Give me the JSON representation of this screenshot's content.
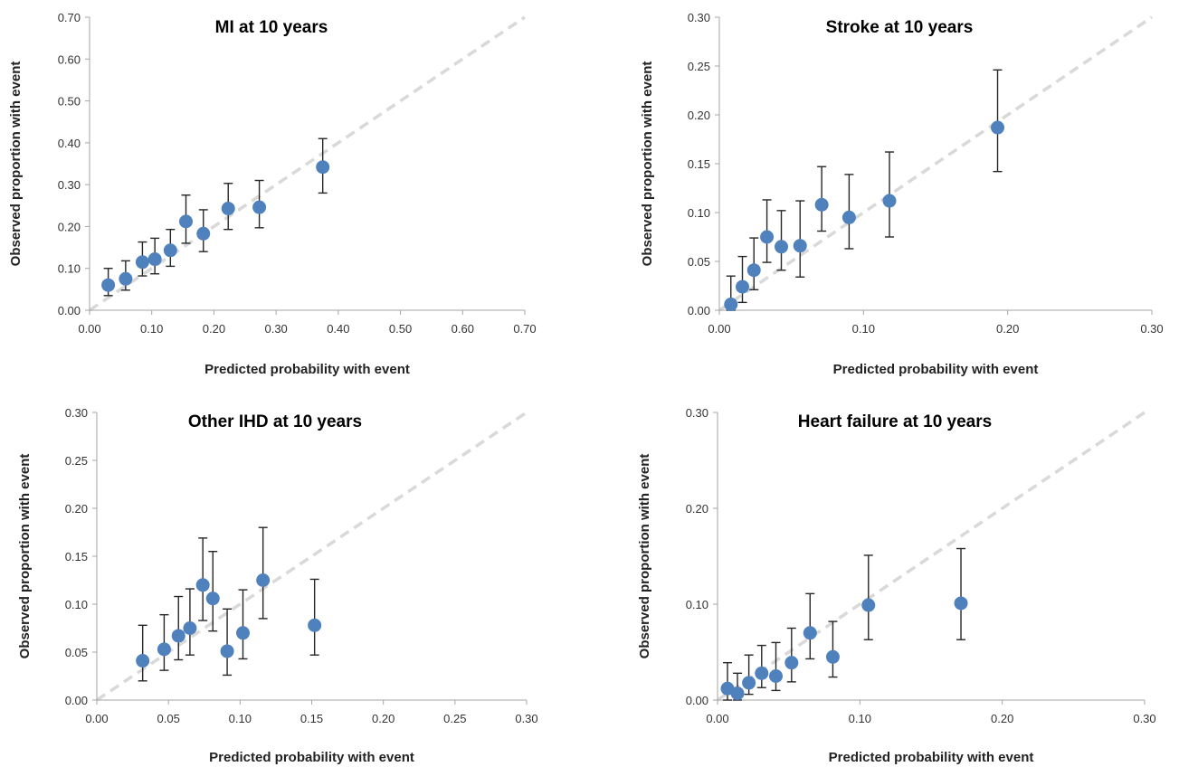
{
  "chart_data": [
    {
      "type": "scatter",
      "title": "MI at 10 years",
      "xlabel": "Predicted probability with event",
      "ylabel": "Observed proportion with event",
      "xlim": [
        0,
        0.7
      ],
      "ylim": [
        0,
        0.7
      ],
      "xticks": [
        "0.00",
        "0.10",
        "0.20",
        "0.30",
        "0.40",
        "0.50",
        "0.60",
        "0.70"
      ],
      "yticks": [
        "0.00",
        "0.10",
        "0.20",
        "0.30",
        "0.40",
        "0.50",
        "0.60",
        "0.70"
      ],
      "reference_line": "y = x (dashed)",
      "grid": false,
      "points": [
        {
          "x": 0.03,
          "y": 0.06,
          "lo": 0.035,
          "hi": 0.1
        },
        {
          "x": 0.058,
          "y": 0.075,
          "lo": 0.048,
          "hi": 0.118
        },
        {
          "x": 0.085,
          "y": 0.115,
          "lo": 0.082,
          "hi": 0.163
        },
        {
          "x": 0.105,
          "y": 0.122,
          "lo": 0.087,
          "hi": 0.172
        },
        {
          "x": 0.13,
          "y": 0.143,
          "lo": 0.105,
          "hi": 0.193
        },
        {
          "x": 0.155,
          "y": 0.212,
          "lo": 0.16,
          "hi": 0.275
        },
        {
          "x": 0.183,
          "y": 0.183,
          "lo": 0.14,
          "hi": 0.24
        },
        {
          "x": 0.223,
          "y": 0.243,
          "lo": 0.193,
          "hi": 0.303
        },
        {
          "x": 0.273,
          "y": 0.246,
          "lo": 0.197,
          "hi": 0.31
        },
        {
          "x": 0.375,
          "y": 0.342,
          "lo": 0.28,
          "hi": 0.41
        }
      ]
    },
    {
      "type": "scatter",
      "title": "Stroke at 10 years",
      "xlabel": "Predicted probability with event",
      "ylabel": "Observed proportion with event",
      "xlim": [
        0,
        0.3
      ],
      "ylim": [
        0,
        0.3
      ],
      "xticks": [
        "0.00",
        "0.10",
        "0.20",
        "0.30"
      ],
      "yticks": [
        "0.00",
        "0.05",
        "0.10",
        "0.15",
        "0.20",
        "0.25",
        "0.30"
      ],
      "reference_line": "y = x (dashed)",
      "grid": false,
      "points": [
        {
          "x": 0.008,
          "y": 0.006,
          "lo": 0.0,
          "hi": 0.035
        },
        {
          "x": 0.016,
          "y": 0.024,
          "lo": 0.008,
          "hi": 0.055
        },
        {
          "x": 0.024,
          "y": 0.041,
          "lo": 0.021,
          "hi": 0.074
        },
        {
          "x": 0.033,
          "y": 0.075,
          "lo": 0.049,
          "hi": 0.113
        },
        {
          "x": 0.043,
          "y": 0.065,
          "lo": 0.041,
          "hi": 0.102
        },
        {
          "x": 0.056,
          "y": 0.066,
          "lo": 0.034,
          "hi": 0.112
        },
        {
          "x": 0.071,
          "y": 0.108,
          "lo": 0.081,
          "hi": 0.147
        },
        {
          "x": 0.09,
          "y": 0.095,
          "lo": 0.063,
          "hi": 0.139
        },
        {
          "x": 0.118,
          "y": 0.112,
          "lo": 0.075,
          "hi": 0.162
        },
        {
          "x": 0.193,
          "y": 0.187,
          "lo": 0.142,
          "hi": 0.246
        }
      ]
    },
    {
      "type": "scatter",
      "title": "Other IHD at 10 years",
      "xlabel": "Predicted probability with event",
      "ylabel": "Observed proportion with event",
      "xlim": [
        0,
        0.3
      ],
      "ylim": [
        0,
        0.3
      ],
      "xticks": [
        "0.00",
        "0.05",
        "0.10",
        "0.15",
        "0.20",
        "0.25",
        "0.30"
      ],
      "yticks": [
        "0.00",
        "0.05",
        "0.10",
        "0.15",
        "0.20",
        "0.25",
        "0.30"
      ],
      "reference_line": "y = x (dashed)",
      "grid": false,
      "points": [
        {
          "x": 0.032,
          "y": 0.041,
          "lo": 0.02,
          "hi": 0.078
        },
        {
          "x": 0.047,
          "y": 0.053,
          "lo": 0.031,
          "hi": 0.089
        },
        {
          "x": 0.057,
          "y": 0.067,
          "lo": 0.042,
          "hi": 0.108
        },
        {
          "x": 0.065,
          "y": 0.075,
          "lo": 0.047,
          "hi": 0.116
        },
        {
          "x": 0.074,
          "y": 0.12,
          "lo": 0.083,
          "hi": 0.169
        },
        {
          "x": 0.081,
          "y": 0.106,
          "lo": 0.072,
          "hi": 0.155
        },
        {
          "x": 0.091,
          "y": 0.051,
          "lo": 0.026,
          "hi": 0.095
        },
        {
          "x": 0.102,
          "y": 0.07,
          "lo": 0.043,
          "hi": 0.115
        },
        {
          "x": 0.116,
          "y": 0.125,
          "lo": 0.085,
          "hi": 0.18
        },
        {
          "x": 0.152,
          "y": 0.078,
          "lo": 0.047,
          "hi": 0.126
        }
      ]
    },
    {
      "type": "scatter",
      "title": "Heart failure at 10 years",
      "xlabel": "Predicted probability with event",
      "ylabel": "Observed proportion with event",
      "xlim": [
        0,
        0.3
      ],
      "ylim": [
        0,
        0.3
      ],
      "xticks": [
        "0.00",
        "0.10",
        "0.20",
        "0.30"
      ],
      "yticks": [
        "0.00",
        "0.10",
        "0.20",
        "0.30"
      ],
      "reference_line": "y = x (dashed)",
      "grid": false,
      "points": [
        {
          "x": 0.007,
          "y": 0.012,
          "lo": 0.0,
          "hi": 0.039
        },
        {
          "x": 0.014,
          "y": 0.007,
          "lo": 0.0,
          "hi": 0.028
        },
        {
          "x": 0.022,
          "y": 0.018,
          "lo": 0.006,
          "hi": 0.047
        },
        {
          "x": 0.031,
          "y": 0.028,
          "lo": 0.013,
          "hi": 0.057
        },
        {
          "x": 0.041,
          "y": 0.025,
          "lo": 0.01,
          "hi": 0.06
        },
        {
          "x": 0.052,
          "y": 0.039,
          "lo": 0.019,
          "hi": 0.075
        },
        {
          "x": 0.065,
          "y": 0.07,
          "lo": 0.043,
          "hi": 0.111
        },
        {
          "x": 0.081,
          "y": 0.045,
          "lo": 0.024,
          "hi": 0.082
        },
        {
          "x": 0.106,
          "y": 0.099,
          "lo": 0.063,
          "hi": 0.151
        },
        {
          "x": 0.171,
          "y": 0.101,
          "lo": 0.063,
          "hi": 0.158
        }
      ]
    }
  ],
  "colors": {
    "marker": "#4f81bd",
    "error_bar": "#262626",
    "reference_line": "#d9d9d9",
    "axis": "#a6a6a6"
  }
}
